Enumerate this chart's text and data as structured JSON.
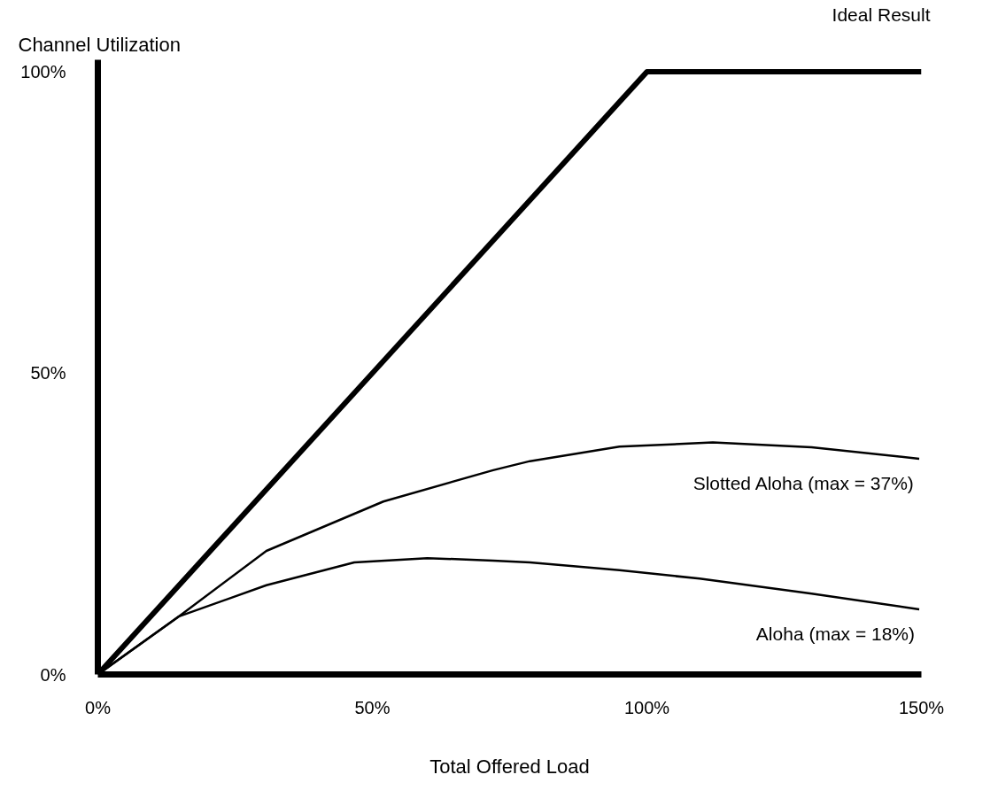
{
  "chart_data": {
    "type": "line",
    "ylabel": "Channel Utilization",
    "xlabel": "Total Offered Load",
    "xlim": [
      0,
      150
    ],
    "ylim": [
      0,
      102
    ],
    "xticks": [
      {
        "value": 0,
        "label": "0%"
      },
      {
        "value": 50,
        "label": "50%"
      },
      {
        "value": 100,
        "label": "100%"
      },
      {
        "value": 150,
        "label": "150%"
      }
    ],
    "yticks": [
      {
        "value": 0,
        "label": "0%"
      },
      {
        "value": 50,
        "label": "50%"
      },
      {
        "value": 100,
        "label": "100%"
      }
    ],
    "grid": false,
    "marker": "none",
    "line_style": "solid",
    "series": [
      {
        "name": "Ideal Result",
        "color": "#000000",
        "x": [
          0,
          100,
          150
        ],
        "values": [
          0,
          100,
          100
        ]
      },
      {
        "name": "Slotted Aloha (max = 37%)",
        "color": "#000000",
        "x": [
          0,
          14.7,
          30.7,
          52,
          72,
          78.7,
          95,
          112,
          130,
          149.6
        ],
        "values": [
          0,
          9.6,
          20.5,
          28.7,
          33.9,
          35.4,
          37.8,
          38.5,
          37.7,
          35.8
        ]
      },
      {
        "name": "Aloha (max = 18%)",
        "color": "#000000",
        "x": [
          0,
          14.7,
          30.7,
          46.7,
          60,
          72,
          78.7,
          95,
          109.6,
          130,
          149.6
        ],
        "values": [
          0,
          9.6,
          14.8,
          18.6,
          19.3,
          18.9,
          18.6,
          17.3,
          15.9,
          13.4,
          10.8
        ]
      }
    ]
  }
}
